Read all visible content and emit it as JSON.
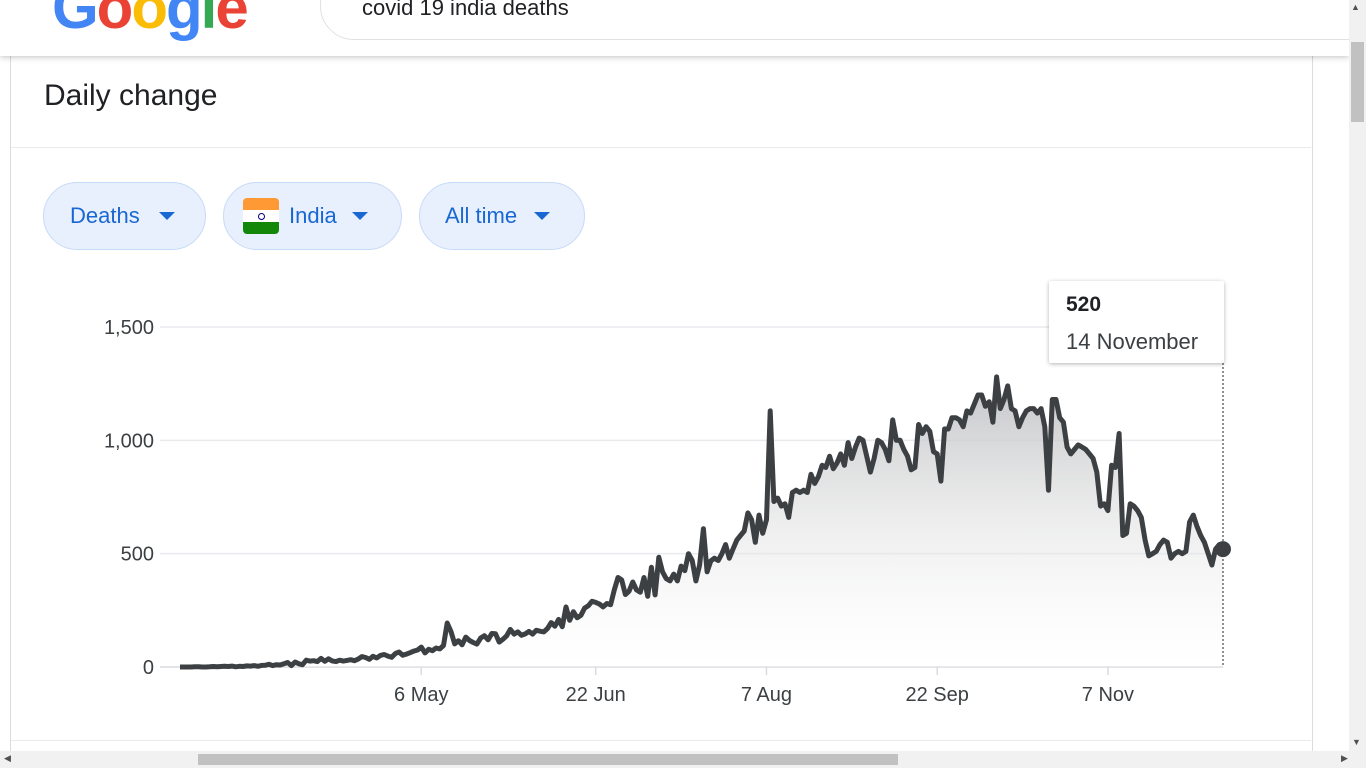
{
  "header": {
    "logo_text": "Google",
    "search_query": "covid 19 india deaths"
  },
  "card": {
    "title": "Daily change"
  },
  "filters": {
    "metric": "Deaths",
    "country": "India",
    "country_flag_icon": "india-flag-icon",
    "range": "All time"
  },
  "tooltip": {
    "value": "520",
    "date": "14 November"
  },
  "colors": {
    "chip_bg": "#e8f0fe",
    "chip_text": "#1967d2",
    "line": "#3c4043"
  },
  "chart_data": {
    "type": "area",
    "title": "",
    "xlabel": "",
    "ylabel": "",
    "ylim": [
      0,
      1500
    ],
    "y_ticks": [
      "0",
      "500",
      "1,000",
      "1,500"
    ],
    "y_tick_values": [
      0,
      500,
      1000,
      1500
    ],
    "x_ticks": [
      "6 May",
      "22 Jun",
      "7 Aug",
      "22 Sep",
      "7 Nov"
    ],
    "x_tick_days": [
      65,
      112,
      158,
      204,
      250
    ],
    "x_start_date": "2 Mar",
    "x_end_date": "14 Nov",
    "grid": true,
    "series": [
      {
        "values": [
          0,
          0,
          0,
          0,
          1,
          1,
          0,
          0,
          1,
          2,
          1,
          2,
          3,
          2,
          4,
          1,
          3,
          2,
          5,
          4,
          6,
          3,
          7,
          8,
          12,
          6,
          10,
          9,
          14,
          20,
          6,
          22,
          14,
          10,
          30,
          26,
          28,
          24,
          38,
          25,
          36,
          27,
          24,
          30,
          26,
          29,
          32,
          28,
          35,
          46,
          42,
          34,
          47,
          40,
          51,
          55,
          48,
          43,
          59,
          66,
          52,
          57,
          63,
          70,
          75,
          88,
          62,
          78,
          72,
          84,
          80,
          95,
          194,
          156,
          102,
          116,
          98,
          132,
          117,
          108,
          101,
          128,
          138,
          120,
          148,
          147,
          110,
          122,
          137,
          166,
          145,
          155,
          140,
          146,
          157,
          145,
          162,
          158,
          155,
          170,
          196,
          180,
          210,
          178,
          265,
          206,
          244,
          217,
          228,
          260,
          270,
          290,
          285,
          278,
          265,
          280,
          275,
          340,
          395,
          384,
          320,
          335,
          375,
          340,
          330,
          395,
          312,
          440,
          318,
          484,
          420,
          390,
          380,
          410,
          380,
          445,
          425,
          500,
          470,
          380,
          450,
          610,
          420,
          468,
          480,
          470,
          500,
          540,
          480,
          520,
          560,
          580,
          600,
          680,
          650,
          550,
          670,
          590,
          650,
          1130,
          730,
          745,
          710,
          720,
          660,
          770,
          780,
          770,
          780,
          770,
          850,
          810,
          840,
          890,
          880,
          930,
          875,
          900,
          940,
          890,
          990,
          920,
          970,
          1010,
          1000,
          930,
          860,
          920,
          1000,
          990,
          960,
          910,
          1090,
          1000,
          1000,
          960,
          930,
          870,
          880,
          1070,
          1030,
          1060,
          1040,
          950,
          940,
          820,
          1050,
          1050,
          1100,
          1100,
          1090,
          1060,
          1130,
          1120,
          1160,
          1200,
          1200,
          1150,
          1170,
          1080,
          1280,
          1140,
          1180,
          1240,
          1140,
          1130,
          1060,
          1100,
          1130,
          1140,
          1140,
          1120,
          1140,
          1060,
          780,
          1180,
          1180,
          1100,
          1080,
          970,
          940,
          960,
          980,
          970,
          960,
          940,
          920,
          860,
          710,
          720,
          690,
          890,
          880,
          1030,
          580,
          590,
          720,
          710,
          690,
          660,
          560,
          490,
          500,
          510,
          540,
          560,
          550,
          480,
          500,
          510,
          500,
          510,
          640,
          670,
          620,
          580,
          550,
          500,
          450,
          520,
          540,
          520
        ]
      }
    ]
  }
}
